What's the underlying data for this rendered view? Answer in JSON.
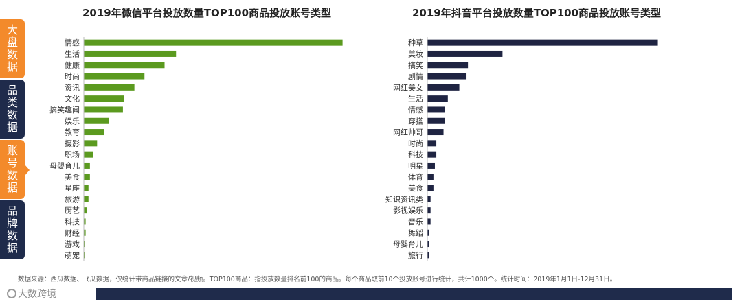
{
  "nav": [
    {
      "label": "大盘数据",
      "color": "orange"
    },
    {
      "label": "品类数据",
      "color": "navy"
    },
    {
      "label": "账号数据",
      "color": "orange",
      "active": true
    },
    {
      "label": "品牌数据",
      "color": "navy"
    }
  ],
  "footnote": "数据来源：西瓜数据、飞瓜数据，仅统计带商品链接的文章/视频。TOP100商品：指投放数量排名前100的商品。每个商品取前10个投放账号进行统计，共计1000个。统计时间：2019年1月1日-12月31日。",
  "footer": {
    "logo_text": "大数跨境"
  },
  "chart_data": [
    {
      "type": "bar",
      "orientation": "horizontal",
      "title": "2019年微信平台投放数量TOP100商品投放账号类型",
      "color": "#5b9a1f",
      "categories": [
        "情感",
        "生活",
        "健康",
        "时尚",
        "资讯",
        "文化",
        "搞笑趣闻",
        "娱乐",
        "教育",
        "摄影",
        "职场",
        "母婴育儿",
        "美食",
        "星座",
        "旅游",
        "厨艺",
        "科技",
        "财经",
        "游戏",
        "萌宠"
      ],
      "values": [
        180,
        64,
        56,
        42,
        35,
        28,
        27,
        17,
        14,
        9,
        6,
        4,
        4,
        3,
        3,
        2,
        1,
        1,
        0.5,
        0.5
      ],
      "xlim": [
        0,
        190
      ],
      "grid": false
    },
    {
      "type": "bar",
      "orientation": "horizontal",
      "title": "2019年抖音平台投放数量TOP100商品投放账号类型",
      "color": "#1f2442",
      "categories": [
        "种草",
        "美妆",
        "搞笑",
        "剧情",
        "网红美女",
        "生活",
        "情感",
        "穿搭",
        "网红帅哥",
        "时尚",
        "科技",
        "明星",
        "体育",
        "美食",
        "知识资讯类",
        "影视娱乐",
        "音乐",
        "舞蹈",
        "母婴育儿",
        "旅行"
      ],
      "values": [
        160,
        52,
        28,
        27,
        22,
        14,
        12,
        12,
        11,
        6,
        6,
        5,
        4,
        4,
        2,
        2,
        2,
        1,
        1,
        1
      ],
      "xlim": [
        0,
        170
      ],
      "grid": false
    }
  ]
}
